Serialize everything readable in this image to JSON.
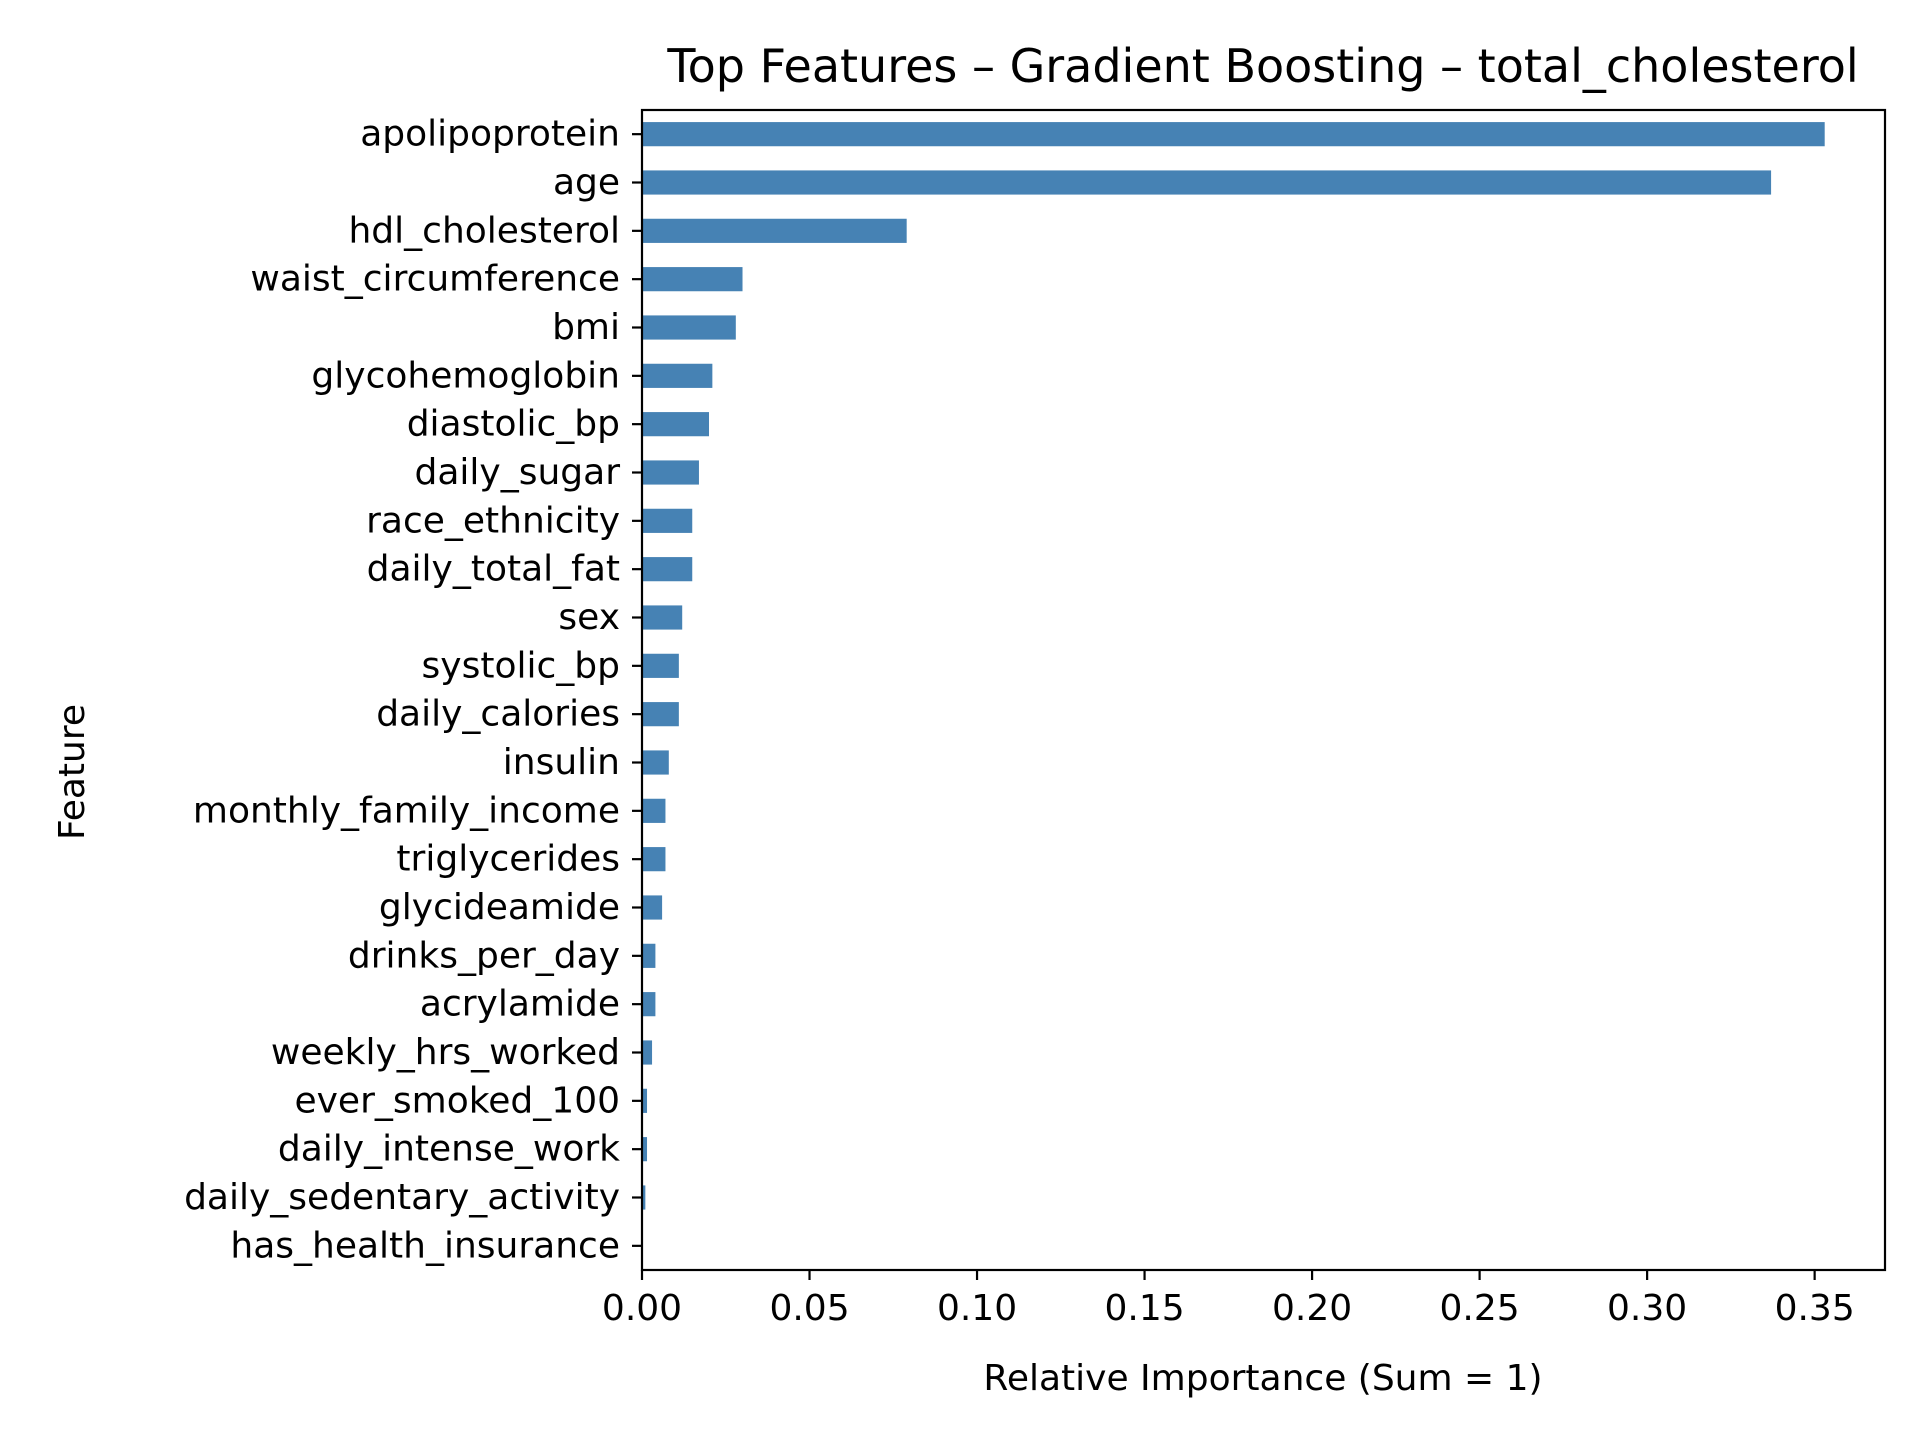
{
  "chart_data": {
    "type": "bar",
    "orientation": "horizontal",
    "title": "Top Features – Gradient Boosting – total_cholesterol",
    "xlabel": "Relative Importance (Sum = 1)",
    "ylabel": "Feature",
    "xlim": [
      0,
      0.371
    ],
    "xticks": [
      "0.00",
      "0.05",
      "0.10",
      "0.15",
      "0.20",
      "0.25",
      "0.30",
      "0.35"
    ],
    "xtick_values": [
      0.0,
      0.05,
      0.1,
      0.15,
      0.2,
      0.25,
      0.3,
      0.35
    ],
    "grid": false,
    "legend": "none",
    "bar_color": "#4682b4",
    "categories": [
      "apolipoprotein",
      "age",
      "hdl_cholesterol",
      "waist_circumference",
      "bmi",
      "glycohemoglobin",
      "diastolic_bp",
      "daily_sugar",
      "race_ethnicity",
      "daily_total_fat",
      "sex",
      "systolic_bp",
      "daily_calories",
      "insulin",
      "monthly_family_income",
      "triglycerides",
      "glycideamide",
      "drinks_per_day",
      "acrylamide",
      "weekly_hrs_worked",
      "ever_smoked_100",
      "daily_intense_work",
      "daily_sedentary_activity",
      "has_health_insurance"
    ],
    "values": [
      0.353,
      0.337,
      0.079,
      0.03,
      0.028,
      0.021,
      0.02,
      0.017,
      0.015,
      0.015,
      0.012,
      0.011,
      0.011,
      0.008,
      0.007,
      0.007,
      0.006,
      0.004,
      0.004,
      0.003,
      0.0015,
      0.0015,
      0.001,
      0.0002
    ]
  }
}
